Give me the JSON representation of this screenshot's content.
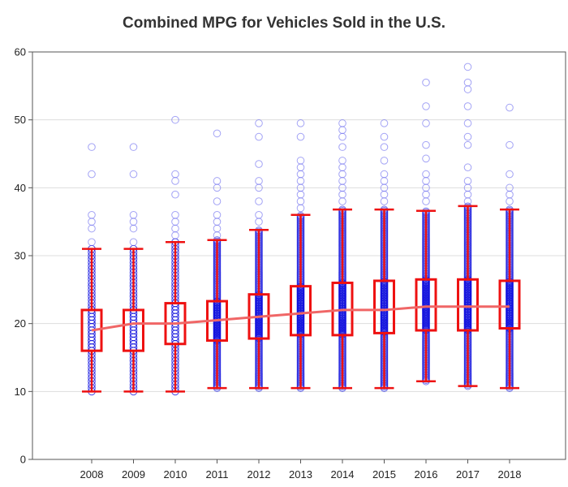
{
  "chart_data": {
    "type": "box",
    "title": "Combined MPG for Vehicles Sold in the U.S.",
    "xlabel": "",
    "ylabel": "",
    "categories": [
      "2008",
      "2009",
      "2010",
      "2011",
      "2012",
      "2013",
      "2014",
      "2015",
      "2016",
      "2017",
      "2018"
    ],
    "ylim": [
      0,
      60
    ],
    "yticks": [
      0,
      10,
      20,
      30,
      40,
      50,
      60
    ],
    "grid": true,
    "box_color": "#ee1111",
    "point_color": "#1111dd",
    "mean_line_color": "#f06666",
    "boxes": [
      {
        "min": 10,
        "q1": 16,
        "median": 19,
        "mean": 19,
        "q3": 22,
        "max": 31,
        "outliers": [
          32,
          34,
          35,
          36,
          42,
          46
        ]
      },
      {
        "min": 10,
        "q1": 16,
        "median": 20,
        "mean": 20,
        "q3": 22,
        "max": 31,
        "outliers": [
          32,
          34,
          35,
          36,
          42,
          46
        ]
      },
      {
        "min": 10,
        "q1": 17,
        "median": 20,
        "mean": 20,
        "q3": 23,
        "max": 32,
        "outliers": [
          33,
          34,
          35,
          36,
          39,
          41,
          42,
          50
        ]
      },
      {
        "min": 10.5,
        "q1": 17.5,
        "median": 20.5,
        "mean": 20.5,
        "q3": 23.3,
        "max": 32.3,
        "outliers": [
          33,
          34,
          35,
          36,
          38,
          40,
          41,
          48
        ]
      },
      {
        "min": 10.5,
        "q1": 17.8,
        "median": 21,
        "mean": 21,
        "q3": 24.3,
        "max": 33.8,
        "outliers": [
          35,
          36,
          38,
          40,
          41,
          43.5,
          47.5,
          49.5
        ]
      },
      {
        "min": 10.5,
        "q1": 18.3,
        "median": 21.5,
        "mean": 21.5,
        "q3": 25.5,
        "max": 36,
        "outliers": [
          37,
          38,
          39,
          40,
          41,
          42,
          43,
          44,
          47.5,
          49.5
        ]
      },
      {
        "min": 10.5,
        "q1": 18.3,
        "median": 22,
        "mean": 22,
        "q3": 26,
        "max": 36.8,
        "outliers": [
          38,
          39,
          40,
          41,
          42,
          43,
          44,
          46,
          47.5,
          48.5,
          49.5
        ]
      },
      {
        "min": 10.5,
        "q1": 18.6,
        "median": 22,
        "mean": 22,
        "q3": 26.3,
        "max": 36.8,
        "outliers": [
          38,
          39,
          40,
          41,
          42,
          44,
          46,
          47.5,
          49.5
        ]
      },
      {
        "min": 11.5,
        "q1": 19,
        "median": 22.5,
        "mean": 22.5,
        "q3": 26.5,
        "max": 36.6,
        "outliers": [
          38,
          39,
          40,
          41,
          42,
          44.3,
          46.3,
          49.5,
          52,
          55.5
        ]
      },
      {
        "min": 10.8,
        "q1": 19,
        "median": 22.5,
        "mean": 22.5,
        "q3": 26.5,
        "max": 37.3,
        "outliers": [
          38,
          39,
          40,
          41,
          43,
          46.3,
          47.5,
          49.5,
          52,
          54.5,
          55.5,
          57.8
        ]
      },
      {
        "min": 10.5,
        "q1": 19.3,
        "median": 22.5,
        "mean": 22.5,
        "q3": 26.3,
        "max": 36.8,
        "outliers": [
          38,
          39,
          40,
          42,
          46.3,
          51.8
        ]
      }
    ]
  }
}
